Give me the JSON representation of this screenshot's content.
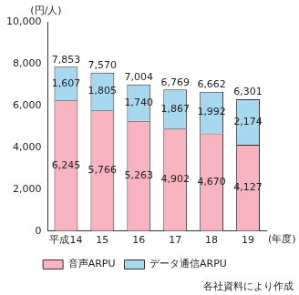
{
  "chart_data": {
    "type": "bar",
    "stacked": true,
    "y_label": "(円/人)",
    "x_label": "(年度)",
    "source": "各社資料により作成",
    "categories": [
      "平成14",
      "15",
      "16",
      "17",
      "18",
      "19"
    ],
    "series": [
      {
        "name": "音声ARPU",
        "color": "#f7b3bf",
        "values": [
          6245,
          5766,
          5263,
          4902,
          4670,
          4127
        ],
        "value_labels": [
          "6,245",
          "5,766",
          "5,263",
          "4,902",
          "4,670",
          "4,127"
        ]
      },
      {
        "name": "データ通信ARPU",
        "color": "#a8d8ef",
        "values": [
          1607,
          1805,
          1740,
          1867,
          1992,
          2174
        ],
        "value_labels": [
          "1,607",
          "1,805",
          "1,740",
          "1,867",
          "1,992",
          "2,174"
        ]
      }
    ],
    "totals": [
      7853,
      7570,
      7004,
      6769,
      6662,
      6301
    ],
    "total_labels": [
      "7,853",
      "7,570",
      "7,004",
      "6,769",
      "6,662",
      "6,301"
    ],
    "ylim": [
      0,
      10000
    ],
    "yticks": [
      0,
      {
        "value": 2000,
        "label": "2,000"
      },
      {
        "value": 4000,
        "label": "4,000"
      },
      {
        "value": 6000,
        "label": "6,000"
      },
      {
        "value": 8000,
        "label": "8,000"
      },
      {
        "value": 10000,
        "label": "10,000"
      }
    ],
    "grid": false,
    "legend": "bottom",
    "data_labels": true
  }
}
